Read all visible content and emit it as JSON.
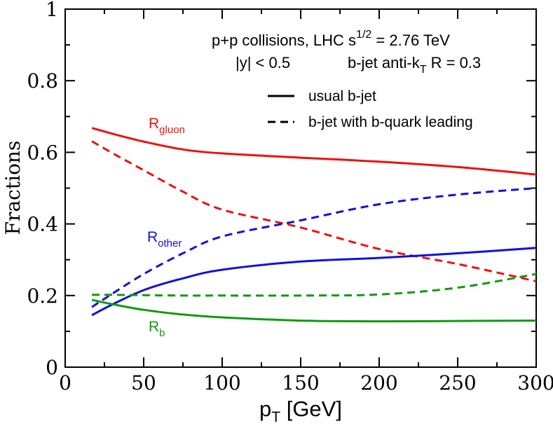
{
  "chart_data": {
    "type": "line",
    "xlabel": "p",
    "xlabel_sub": "T",
    "xlabel_unit": " [GeV]",
    "ylabel": "Fractions",
    "xlim": [
      0,
      300
    ],
    "ylim": [
      0,
      1
    ],
    "x_ticks": [
      "0",
      "50",
      "100",
      "150",
      "200",
      "250",
      "300"
    ],
    "y_ticks": [
      "0",
      "0.2",
      "0.4",
      "0.6",
      "0.8",
      "1"
    ],
    "grid": false,
    "annotations": {
      "line1": "p+p collisions, LHC s",
      "line1_sup": "1/2",
      "line1_tail": " = 2.76 TeV",
      "line2_a": "|y| < 0.5",
      "line2_b": "b-jet anti-k",
      "line2_sub": "T",
      "line2_tail": " R = 0.3"
    },
    "legend": {
      "placement": "top-right",
      "entries": [
        {
          "label": "usual b-jet",
          "dash": "solid"
        },
        {
          "label": "b-jet with b-quark leading",
          "dash": "dashed"
        }
      ]
    },
    "series_labels": [
      {
        "main": "R",
        "sub": "gluon",
        "color": "#ee1111"
      },
      {
        "main": "R",
        "sub": "other",
        "color": "#1111dd"
      },
      {
        "main": "R",
        "sub": "b",
        "color": "#119911"
      }
    ],
    "series": [
      {
        "group": "gluon",
        "style": "solid",
        "color": "#ee1111",
        "x": [
          17,
          30,
          50,
          75,
          100,
          150,
          200,
          250,
          300
        ],
        "y": [
          0.668,
          0.652,
          0.63,
          0.608,
          0.597,
          0.585,
          0.574,
          0.559,
          0.538
        ]
      },
      {
        "group": "gluon",
        "style": "dashed",
        "color": "#ee1111",
        "x": [
          17,
          30,
          50,
          75,
          100,
          150,
          200,
          250,
          300
        ],
        "y": [
          0.631,
          0.598,
          0.55,
          0.49,
          0.44,
          0.39,
          0.33,
          0.288,
          0.24
        ]
      },
      {
        "group": "other",
        "style": "solid",
        "color": "#1111dd",
        "x": [
          17,
          30,
          50,
          75,
          100,
          150,
          200,
          250,
          300
        ],
        "y": [
          0.145,
          0.175,
          0.215,
          0.248,
          0.272,
          0.295,
          0.305,
          0.318,
          0.333
        ]
      },
      {
        "group": "other",
        "style": "dashed",
        "color": "#1111dd",
        "x": [
          17,
          30,
          50,
          75,
          100,
          150,
          200,
          250,
          300
        ],
        "y": [
          0.168,
          0.205,
          0.26,
          0.318,
          0.365,
          0.41,
          0.455,
          0.482,
          0.5
        ]
      },
      {
        "group": "b",
        "style": "solid",
        "color": "#119911",
        "x": [
          17,
          30,
          50,
          75,
          100,
          150,
          200,
          250,
          300
        ],
        "y": [
          0.188,
          0.176,
          0.16,
          0.147,
          0.139,
          0.13,
          0.128,
          0.129,
          0.13
        ]
      },
      {
        "group": "b",
        "style": "dashed",
        "color": "#119911",
        "x": [
          17,
          30,
          50,
          75,
          100,
          150,
          200,
          250,
          300
        ],
        "y": [
          0.202,
          0.202,
          0.201,
          0.2,
          0.2,
          0.2,
          0.203,
          0.222,
          0.26
        ]
      }
    ]
  }
}
